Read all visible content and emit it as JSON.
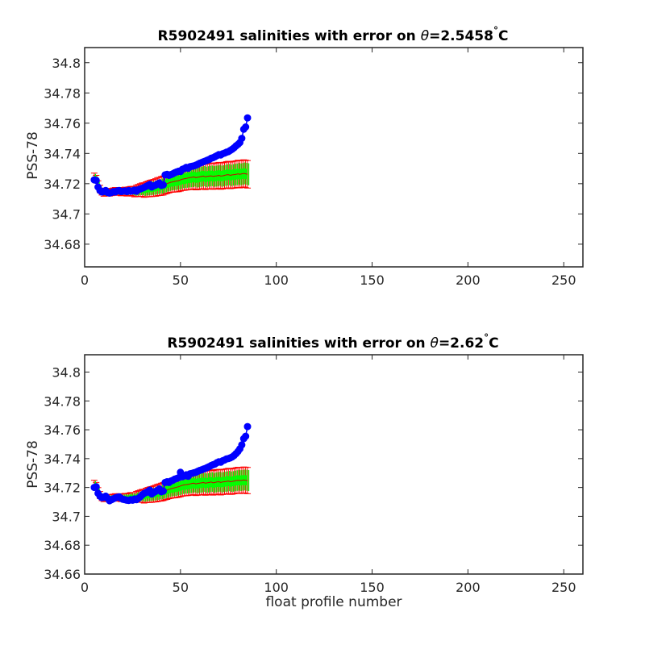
{
  "chart_data": [
    {
      "type": "scatter",
      "title_prefix": "R5902491 salinities with error on ",
      "title_theta_symbol": "θ",
      "title_value": "=2.5458",
      "title_degree": "°",
      "title_unit": "C",
      "xlabel": "",
      "ylabel": "PSS-78",
      "xlim": [
        0,
        260
      ],
      "ylim": [
        34.665,
        34.81
      ],
      "xticks": [
        "0",
        "50",
        "100",
        "150",
        "200",
        "250"
      ],
      "yticks": [
        "34.68",
        "34.7",
        "34.72",
        "34.74",
        "34.76",
        "34.78",
        "34.8"
      ],
      "colors": {
        "points": "#0000ff",
        "errorbars": "#ff0000",
        "mapped": "#00ff00",
        "mapped_edge": "#008800"
      },
      "x_start": 5,
      "salinity": [
        34.7225,
        34.7222,
        34.7178,
        34.7155,
        34.7145,
        34.7148,
        34.7155,
        34.7142,
        34.7138,
        34.7142,
        34.7148,
        34.7145,
        34.7152,
        34.7155,
        34.7148,
        34.715,
        34.7152,
        34.7148,
        34.7155,
        34.715,
        34.7152,
        34.7158,
        34.715,
        34.716,
        34.7165,
        34.717,
        34.7175,
        34.7182,
        34.7188,
        34.7195,
        34.7178,
        34.7185,
        34.719,
        34.7198,
        34.7205,
        34.7188,
        34.7192,
        34.7258,
        34.7262,
        34.7255,
        34.726,
        34.7265,
        34.7272,
        34.7278,
        34.7282,
        34.728,
        34.7295,
        34.73,
        34.7308,
        34.7302,
        34.7312,
        34.7315,
        34.7318,
        34.7322,
        34.7328,
        34.7335,
        34.734,
        34.7345,
        34.735,
        34.7355,
        34.736,
        34.7368,
        34.7372,
        34.7378,
        34.7385,
        34.7392,
        34.739,
        34.7398,
        34.7402,
        34.7408,
        34.7412,
        34.742,
        34.7428,
        34.7438,
        34.745,
        34.746,
        34.7472,
        34.75,
        34.756,
        34.7575,
        34.7635
      ],
      "mapped": [
        34.7245,
        34.723,
        34.7195,
        34.7165,
        34.7148,
        34.714,
        34.7142,
        34.7145,
        34.7142,
        34.7145,
        34.7148,
        34.715,
        34.7148,
        34.715,
        34.7146,
        34.7148,
        34.715,
        34.7146,
        34.715,
        34.7152,
        34.715,
        34.7148,
        34.7152,
        34.7155,
        34.7158,
        34.716,
        34.7158,
        34.7162,
        34.7165,
        34.7168,
        34.717,
        34.7172,
        34.7175,
        34.718,
        34.7182,
        34.7185,
        34.7188,
        34.7195,
        34.72,
        34.7205,
        34.721,
        34.7212,
        34.7215,
        34.7218,
        34.722,
        34.7225,
        34.723,
        34.7232,
        34.7235,
        34.7238,
        34.724,
        34.7242,
        34.7245,
        34.724,
        34.7242,
        34.7245,
        34.7248,
        34.725,
        34.7245,
        34.7248,
        34.725,
        34.7252,
        34.7248,
        34.725,
        34.7252,
        34.7255,
        34.725,
        34.7252,
        34.7255,
        34.7258,
        34.726,
        34.7255,
        34.7258,
        34.726,
        34.7262,
        34.7265,
        34.7262,
        34.7265,
        34.7268,
        34.7265,
        34.7262
      ],
      "error": [
        0.0025,
        0.0025,
        0.0024,
        0.0024,
        0.0023,
        0.0023,
        0.0023,
        0.0023,
        0.0024,
        0.0024,
        0.0024,
        0.0025,
        0.0025,
        0.0025,
        0.0026,
        0.0026,
        0.0027,
        0.0028,
        0.0029,
        0.003,
        0.0032,
        0.0035,
        0.0038,
        0.004,
        0.0042,
        0.0045,
        0.0048,
        0.005,
        0.0052,
        0.0054,
        0.0055,
        0.0056,
        0.0058,
        0.006,
        0.006,
        0.0062,
        0.0063,
        0.0064,
        0.0065,
        0.0066,
        0.0067,
        0.0068,
        0.007,
        0.0072,
        0.0073,
        0.0074,
        0.0075,
        0.0076,
        0.0077,
        0.0078,
        0.0079,
        0.008,
        0.008,
        0.0081,
        0.0082,
        0.0082,
        0.0083,
        0.0083,
        0.0084,
        0.0084,
        0.0085,
        0.0085,
        0.0085,
        0.0086,
        0.0086,
        0.0086,
        0.0087,
        0.0087,
        0.0087,
        0.0088,
        0.0088,
        0.0088,
        0.0089,
        0.0089,
        0.0089,
        0.009,
        0.009,
        0.009,
        0.009,
        0.0091,
        0.0091
      ]
    },
    {
      "type": "scatter",
      "title_prefix": "R5902491 salinities with error on ",
      "title_theta_symbol": "θ",
      "title_value": "=2.62",
      "title_degree": "°",
      "title_unit": "C",
      "xlabel": "float profile number",
      "ylabel": "PSS-78",
      "xlim": [
        0,
        260
      ],
      "ylim": [
        34.66,
        34.812
      ],
      "xticks": [
        "0",
        "50",
        "100",
        "150",
        "200",
        "250"
      ],
      "yticks": [
        "34.66",
        "34.68",
        "34.7",
        "34.72",
        "34.74",
        "34.76",
        "34.78",
        "34.8"
      ],
      "colors": {
        "points": "#0000ff",
        "errorbars": "#ff0000",
        "mapped": "#00ff00",
        "mapped_edge": "#008800"
      },
      "x_start": 5,
      "salinity": [
        34.72,
        34.7205,
        34.716,
        34.714,
        34.713,
        34.7132,
        34.714,
        34.7125,
        34.7108,
        34.7115,
        34.7122,
        34.7128,
        34.7132,
        34.7135,
        34.7125,
        34.7118,
        34.7115,
        34.7112,
        34.711,
        34.7115,
        34.7112,
        34.712,
        34.7115,
        34.7125,
        34.7135,
        34.7148,
        34.7158,
        34.7165,
        34.7172,
        34.7182,
        34.7155,
        34.7165,
        34.7172,
        34.718,
        34.719,
        34.717,
        34.7175,
        34.7235,
        34.724,
        34.7235,
        34.7245,
        34.725,
        34.7258,
        34.7262,
        34.7268,
        34.7305,
        34.7275,
        34.728,
        34.7288,
        34.7278,
        34.7295,
        34.7298,
        34.7302,
        34.7305,
        34.7312,
        34.7318,
        34.7322,
        34.7328,
        34.7332,
        34.7338,
        34.7345,
        34.7352,
        34.7358,
        34.7362,
        34.7372,
        34.7378,
        34.7375,
        34.7385,
        34.739,
        34.7398,
        34.74,
        34.7405,
        34.7412,
        34.7422,
        34.7435,
        34.745,
        34.7468,
        34.7495,
        34.7538,
        34.7555,
        34.7622
      ],
      "mapped": [
        34.7225,
        34.721,
        34.7175,
        34.7148,
        34.7132,
        34.7125,
        34.7126,
        34.7128,
        34.7126,
        34.7128,
        34.713,
        34.7132,
        34.713,
        34.7132,
        34.7128,
        34.713,
        34.7132,
        34.7128,
        34.7132,
        34.7135,
        34.7132,
        34.713,
        34.7135,
        34.7138,
        34.714,
        34.7142,
        34.714,
        34.7145,
        34.7148,
        34.715,
        34.7152,
        34.7155,
        34.7158,
        34.7162,
        34.7165,
        34.7168,
        34.7172,
        34.7178,
        34.7182,
        34.7188,
        34.7192,
        34.7195,
        34.7198,
        34.7202,
        34.7205,
        34.721,
        34.7215,
        34.7218,
        34.722,
        34.7222,
        34.7225,
        34.7228,
        34.723,
        34.7225,
        34.7228,
        34.723,
        34.7232,
        34.7235,
        34.723,
        34.7232,
        34.7235,
        34.7238,
        34.7232,
        34.7235,
        34.7238,
        34.724,
        34.7235,
        34.7238,
        34.724,
        34.7242,
        34.7245,
        34.724,
        34.7242,
        34.7245,
        34.7248,
        34.725,
        34.7248,
        34.725,
        34.7252,
        34.725,
        34.7248
      ],
      "error": [
        0.0025,
        0.0025,
        0.0024,
        0.0024,
        0.0023,
        0.0023,
        0.0023,
        0.0023,
        0.0024,
        0.0024,
        0.0024,
        0.0025,
        0.0025,
        0.0025,
        0.0026,
        0.0026,
        0.0027,
        0.0028,
        0.0029,
        0.003,
        0.0032,
        0.0035,
        0.0038,
        0.004,
        0.0042,
        0.0045,
        0.0048,
        0.005,
        0.0052,
        0.0054,
        0.0055,
        0.0056,
        0.0058,
        0.006,
        0.006,
        0.0062,
        0.0063,
        0.0064,
        0.0065,
        0.0066,
        0.0067,
        0.0068,
        0.007,
        0.0072,
        0.0073,
        0.0074,
        0.0075,
        0.0076,
        0.0077,
        0.0078,
        0.0079,
        0.008,
        0.008,
        0.0081,
        0.0082,
        0.0082,
        0.0083,
        0.0083,
        0.0084,
        0.0084,
        0.0085,
        0.0085,
        0.0085,
        0.0086,
        0.0086,
        0.0086,
        0.0087,
        0.0087,
        0.0087,
        0.0088,
        0.0088,
        0.0088,
        0.0089,
        0.0089,
        0.0089,
        0.009,
        0.009,
        0.009,
        0.009,
        0.0091,
        0.0091
      ]
    }
  ]
}
